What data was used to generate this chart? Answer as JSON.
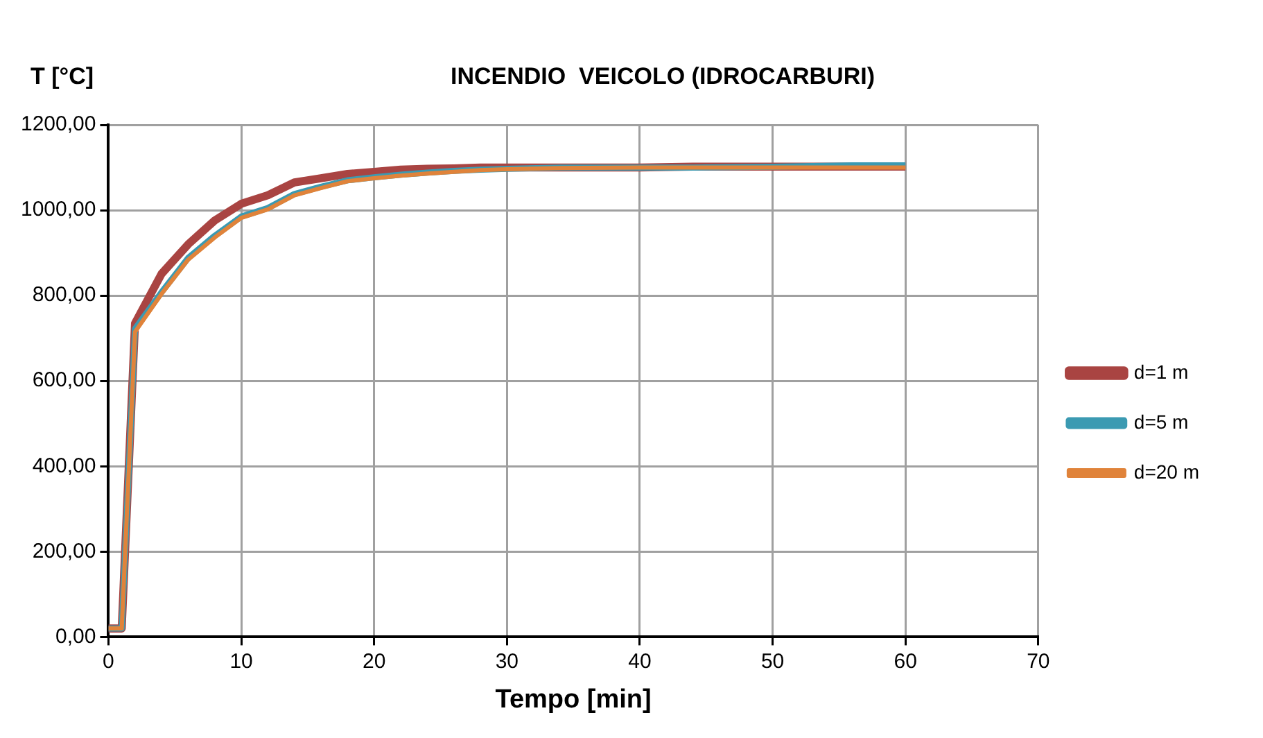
{
  "chart_data": {
    "type": "line",
    "title": "INCENDIO  VEICOLO (IDROCARBURI)",
    "xlabel": "Tempo [min]",
    "ylabel": "T [°C]",
    "x": [
      0,
      1,
      2,
      4,
      6,
      8,
      10,
      12,
      14,
      16,
      18,
      20,
      22,
      24,
      26,
      28,
      30,
      34,
      40,
      44,
      50,
      56,
      60
    ],
    "series": [
      {
        "name": "d=1 m",
        "color": "#a94442",
        "values": [
          20,
          20,
          735,
          851,
          920,
          976,
          1015,
          1035,
          1065,
          1075,
          1085,
          1090,
          1095,
          1097,
          1098,
          1100,
          1100,
          1100,
          1100,
          1102,
          1102,
          1102,
          1102
        ]
      },
      {
        "name": "d=5 m",
        "color": "#3b9ab2",
        "values": [
          20,
          20,
          722,
          808,
          888,
          940,
          985,
          1005,
          1038,
          1055,
          1070,
          1077,
          1083,
          1088,
          1092,
          1095,
          1097,
          1100,
          1100,
          1100,
          1102,
          1105,
          1105
        ]
      },
      {
        "name": "d=20 m",
        "color": "#e0833a",
        "values": [
          20,
          20,
          715,
          804,
          884,
          936,
          982,
          1002,
          1035,
          1052,
          1068,
          1075,
          1081,
          1086,
          1090,
          1094,
          1096,
          1099,
          1100,
          1100,
          1100,
          1100,
          1100
        ]
      }
    ],
    "xlim": [
      0,
      70
    ],
    "xticks": [
      0,
      10,
      20,
      30,
      40,
      50,
      60,
      70
    ],
    "ylim": [
      0,
      1200
    ],
    "yticks": [
      {
        "value": 0,
        "label": "0,00"
      },
      {
        "value": 200,
        "label": "200,00"
      },
      {
        "value": 400,
        "label": "400,00"
      },
      {
        "value": 600,
        "label": "600,00"
      },
      {
        "value": 800,
        "label": "800,00"
      },
      {
        "value": 1000,
        "label": "1000,00"
      },
      {
        "value": 1200,
        "label": "1200,00"
      }
    ],
    "grid": true,
    "legend": "right",
    "marker": "none",
    "line_style": "solid"
  }
}
